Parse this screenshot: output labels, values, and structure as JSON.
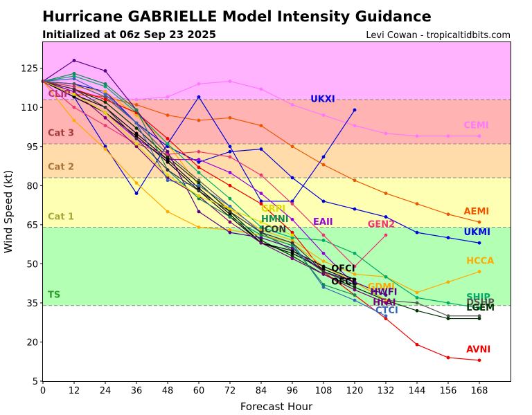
{
  "chart_data": {
    "type": "line",
    "title": "Hurricane GABRIELLE Model Intensity Guidance",
    "subtitle": "Initialized at 06z Sep 23 2025",
    "credit": "Levi Cowan - tropicaltidbits.com",
    "xlabel": "Forecast Hour",
    "ylabel": "Wind Speed (kt)",
    "xlim": [
      0,
      180
    ],
    "ylim": [
      5,
      135
    ],
    "xticks": [
      0,
      12,
      24,
      36,
      48,
      60,
      72,
      84,
      96,
      108,
      120,
      132,
      144,
      156,
      168
    ],
    "yticks": [
      5,
      20,
      35,
      50,
      65,
      80,
      95,
      110,
      125
    ],
    "bands": [
      {
        "label": "TS",
        "from": 34,
        "to": 64,
        "color": "#b3ffb3",
        "label_color": "#2e9e2e",
        "label_y": 37
      },
      {
        "label": "Cat 1",
        "from": 64,
        "to": 83,
        "color": "#ffffb3",
        "label_color": "#a8a83a",
        "label_y": 67
      },
      {
        "label": "Cat 2",
        "from": 83,
        "to": 96,
        "color": "#ffdcaa",
        "label_color": "#a8743a",
        "label_y": 86
      },
      {
        "label": "Cat 3",
        "from": 96,
        "to": 113,
        "color": "#ffb3b3",
        "label_color": "#a33a3a",
        "label_y": 99
      },
      {
        "label": "",
        "from": 113,
        "to": 135,
        "color": "#ffb3ff",
        "label_color": "#a33aa3",
        "label_y": 0
      }
    ],
    "series": [
      {
        "name": "CEMI",
        "color": "#ff77ff",
        "x": [
          0,
          12,
          24,
          36,
          48,
          60,
          72,
          84,
          96,
          108,
          120,
          132,
          144,
          156,
          168
        ],
        "values": [
          120,
          116,
          114,
          113,
          114,
          119,
          120,
          117,
          111,
          107,
          103,
          100,
          99,
          99,
          99
        ],
        "label_x": 162,
        "label_y": 102
      },
      {
        "name": "AEMI",
        "color": "#ee5500",
        "x": [
          0,
          12,
          24,
          36,
          48,
          60,
          72,
          84,
          96,
          108,
          120,
          132,
          144,
          156,
          168
        ],
        "values": [
          120,
          115,
          114,
          111,
          107,
          105,
          106,
          103,
          95,
          88,
          82,
          77,
          73,
          69,
          66
        ],
        "label_x": 162,
        "label_y": 69
      },
      {
        "name": "UKMI",
        "color": "#0000dd",
        "x": [
          0,
          12,
          24,
          36,
          48,
          60,
          72,
          84,
          96,
          108,
          120,
          132,
          144,
          156,
          168
        ],
        "values": [
          120,
          119,
          116,
          104,
          95,
          89,
          93,
          94,
          83,
          74,
          71,
          68,
          62,
          60,
          58
        ],
        "label_x": 162,
        "label_y": 61
      },
      {
        "name": "UKXI",
        "color": "#0000dd",
        "x": [
          0,
          12,
          24,
          36,
          48,
          60,
          72,
          84,
          96,
          108,
          120
        ],
        "values": [
          120,
          114,
          95,
          77,
          96,
          114,
          95,
          74,
          74,
          91,
          109
        ],
        "label_x": 103,
        "label_y": 112
      },
      {
        "name": "HCCA",
        "color": "#ffaa00",
        "x": [
          0,
          12,
          24,
          36,
          48,
          60,
          72,
          84,
          96,
          108,
          120,
          132,
          144,
          156,
          168
        ],
        "values": [
          120,
          118,
          116,
          107,
          96,
          80,
          71,
          63,
          59,
          51,
          46,
          45,
          39,
          43,
          47
        ],
        "label_x": 163,
        "label_y": 50
      },
      {
        "name": "SHIP",
        "color": "#00aa66",
        "x": [
          0,
          12,
          24,
          36,
          48,
          60,
          72,
          84,
          96,
          108,
          120,
          132,
          144,
          156,
          168
        ],
        "values": [
          120,
          122,
          118,
          108,
          96,
          85,
          75,
          64,
          60,
          59,
          54,
          45,
          37,
          35,
          33
        ],
        "label_x": 163,
        "label_y": 36
      },
      {
        "name": "DSHP",
        "color": "#555555",
        "x": [
          0,
          12,
          24,
          36,
          48,
          60,
          72,
          84,
          96,
          108,
          120,
          132,
          144,
          156,
          168
        ],
        "values": [
          120,
          119,
          114,
          104,
          92,
          82,
          72,
          62,
          55,
          47,
          43,
          36,
          35,
          30,
          30
        ],
        "label_x": 163,
        "label_y": 34
      },
      {
        "name": "LGEM",
        "color": "#003300",
        "x": [
          0,
          12,
          24,
          36,
          48,
          60,
          72,
          84,
          96,
          108,
          120,
          132,
          144,
          156,
          168
        ],
        "values": [
          120,
          117,
          112,
          102,
          91,
          81,
          70,
          59,
          53,
          46,
          41,
          36,
          32,
          29,
          29
        ],
        "label_x": 163,
        "label_y": 32
      },
      {
        "name": "AVNI",
        "color": "#ee0000",
        "x": [
          0,
          12,
          24,
          36,
          48,
          60,
          72,
          84,
          96,
          108,
          120,
          132,
          144,
          156,
          168
        ],
        "values": [
          120,
          117,
          113,
          108,
          98,
          87,
          80,
          73,
          62,
          47,
          38,
          29,
          19,
          14,
          13
        ],
        "label_x": 163,
        "label_y": 16
      },
      {
        "name": "GDMI",
        "color": "#ffaa00",
        "x": [
          0,
          12,
          24,
          36,
          48,
          60,
          72,
          84,
          96,
          108,
          120,
          132
        ],
        "values": [
          120,
          105,
          94,
          81,
          70,
          64,
          63,
          61,
          58,
          49,
          43,
          36
        ],
        "label_x": 125,
        "label_y": 40
      },
      {
        "name": "GEN2",
        "color": "#ee3377",
        "x": [
          0,
          12,
          24,
          36,
          48,
          60,
          72,
          84,
          96,
          108,
          120,
          132
        ],
        "values": [
          120,
          110,
          103,
          96,
          92,
          93,
          91,
          84,
          73,
          61,
          49,
          61
        ],
        "label_x": 125,
        "label_y": 64
      },
      {
        "name": "EAII",
        "color": "#9900dd",
        "x": [
          0,
          12,
          24,
          36,
          48,
          60,
          72,
          84,
          96,
          108,
          120
        ],
        "values": [
          120,
          114,
          108,
          98,
          90,
          90,
          85,
          77,
          67,
          54,
          42
        ],
        "label_x": 104,
        "label_y": 65
      },
      {
        "name": "OFCI",
        "color": "#000000",
        "x": [
          0,
          12,
          24,
          36,
          48,
          60,
          72,
          84,
          96,
          108,
          120
        ],
        "values": [
          120,
          115,
          110,
          100,
          90,
          79,
          69,
          58,
          55,
          49,
          44
        ],
        "label_x": 111,
        "label_y": 47
      },
      {
        "name": "OFCL",
        "color": "#000000",
        "x": [
          0,
          12,
          24,
          36,
          48,
          60,
          72,
          84,
          96,
          108,
          120
        ],
        "values": [
          120,
          114,
          108,
          99,
          89,
          78,
          68,
          58,
          54,
          48,
          43
        ],
        "label_x": 111,
        "label_y": 42
      },
      {
        "name": "HWFI",
        "color": "#550088",
        "x": [
          0,
          12,
          24,
          36,
          48,
          60,
          72,
          84,
          96,
          108,
          120,
          132
        ],
        "values": [
          120,
          128,
          124,
          109,
          93,
          70,
          62,
          60,
          56,
          47,
          43,
          38
        ],
        "label_x": 126,
        "label_y": 38
      },
      {
        "name": "HFAI",
        "color": "#770077",
        "x": [
          0,
          12,
          24,
          36,
          48,
          60,
          72,
          84,
          96,
          108,
          120,
          132
        ],
        "values": [
          120,
          116,
          106,
          95,
          83,
          76,
          66,
          58,
          52,
          46,
          40,
          35
        ],
        "label_x": 127,
        "label_y": 34
      },
      {
        "name": "CTCI",
        "color": "#3366bb",
        "x": [
          0,
          12,
          24,
          36,
          48,
          60,
          72,
          84,
          96,
          108,
          120,
          132
        ],
        "values": [
          120,
          121,
          115,
          104,
          82,
          80,
          72,
          62,
          58,
          41,
          36,
          30
        ],
        "label_x": 128,
        "label_y": 31
      },
      {
        "name": "HMNI",
        "color": "#118855",
        "x": [
          0,
          12,
          24,
          36,
          48,
          60,
          72,
          84,
          96,
          108,
          120
        ],
        "values": [
          120,
          123,
          119,
          109,
          86,
          75,
          68,
          61,
          57,
          42,
          38
        ],
        "label_x": 84,
        "label_y": 66
      },
      {
        "name": "GRPI",
        "color": "#dddd00",
        "x": [
          0,
          12,
          24,
          36,
          48,
          60,
          72,
          84,
          96
        ],
        "values": [
          120,
          115,
          108,
          96,
          84,
          76,
          71,
          66,
          61
        ],
        "label_x": 84,
        "label_y": 70
      },
      {
        "name": "ICON",
        "color": "#333333",
        "x": [
          0,
          12,
          24,
          36,
          48,
          60,
          72,
          84,
          96,
          108,
          120
        ],
        "values": [
          120,
          117,
          110,
          98,
          86,
          78,
          70,
          62,
          58,
          47,
          42
        ],
        "label_x": 84,
        "label_y": 62
      },
      {
        "name": "CLIP",
        "color": "#bb3366",
        "x": [
          0,
          12
        ],
        "values": [
          120,
          118
        ],
        "label_x": 2,
        "label_y": 114
      }
    ]
  }
}
